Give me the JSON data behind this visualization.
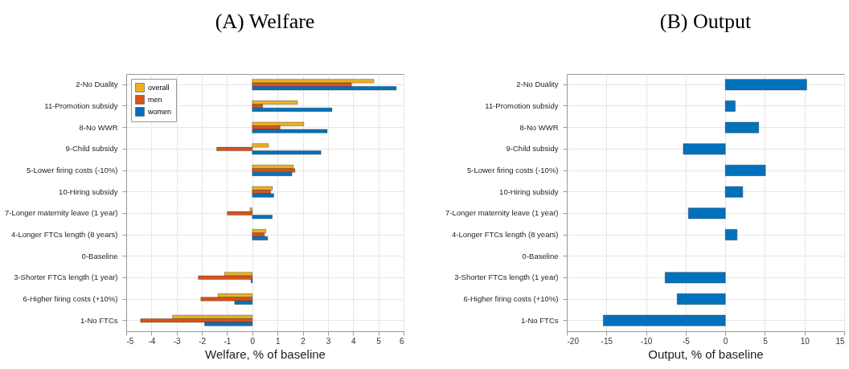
{
  "chart_data": [
    {
      "type": "bar",
      "orientation": "horizontal",
      "title": "(A) Welfare",
      "xlabel": "Welfare, % of baseline",
      "categories": [
        "2-No Duality",
        "11-Promotion subsidy",
        "8-No WWR",
        "9-Child subsidy",
        "5-Lower firing costs (-10%)",
        "10-Hiring subsidy",
        "7-Longer maternity leave (1 year)",
        "4-Longer FTCs length (8 years)",
        "0-Baseline",
        "3-Shorter FTCs length (1 year)",
        "6-Higher firing costs (+10%)",
        "1-No FTCs"
      ],
      "series": [
        {
          "name": "overall",
          "color": "#edb120",
          "values": [
            4.82,
            1.79,
            2.04,
            0.64,
            1.63,
            0.8,
            -0.09,
            0.54,
            0,
            -1.1,
            -1.36,
            -3.16
          ]
        },
        {
          "name": "men",
          "color": "#d95319",
          "values": [
            3.93,
            0.41,
            1.1,
            -1.41,
            1.69,
            0.73,
            -0.99,
            0.48,
            0,
            -2.14,
            -2.04,
            -4.43
          ]
        },
        {
          "name": "women",
          "color": "#0072bd",
          "values": [
            5.71,
            3.16,
            2.97,
            2.72,
            1.57,
            0.85,
            0.79,
            0.61,
            0,
            -0.05,
            -0.7,
            -1.89
          ]
        }
      ],
      "xlim": [
        -5,
        6
      ],
      "xticks": [
        -5,
        -4,
        -3,
        -2,
        -1,
        0,
        1,
        2,
        3,
        4,
        5,
        6
      ],
      "grid": true,
      "legend": "top left"
    },
    {
      "type": "bar",
      "orientation": "horizontal",
      "title": "(B) Output",
      "xlabel": "Output, % of baseline",
      "categories": [
        "2-No Duality",
        "11-Promotion subsidy",
        "8-No WWR",
        "9-Child subsidy",
        "5-Lower firing costs (-10%)",
        "10-Hiring subsidy",
        "7-Longer maternity leave (1 year)",
        "4-Longer FTCs length (8 years)",
        "0-Baseline",
        "3-Shorter FTCs length (1 year)",
        "6-Higher firing costs (+10%)",
        "1-No FTCs"
      ],
      "series": [
        {
          "color": "#0072bd",
          "values": [
            10.27,
            1.25,
            4.22,
            -5.3,
            5.07,
            2.2,
            -4.66,
            1.49,
            0,
            -7.6,
            -6.08,
            -15.4
          ]
        }
      ],
      "xlim": [
        -20,
        15
      ],
      "xticks": [
        -20,
        -15,
        -10,
        -5,
        0,
        5,
        10,
        15
      ],
      "grid": true
    }
  ]
}
